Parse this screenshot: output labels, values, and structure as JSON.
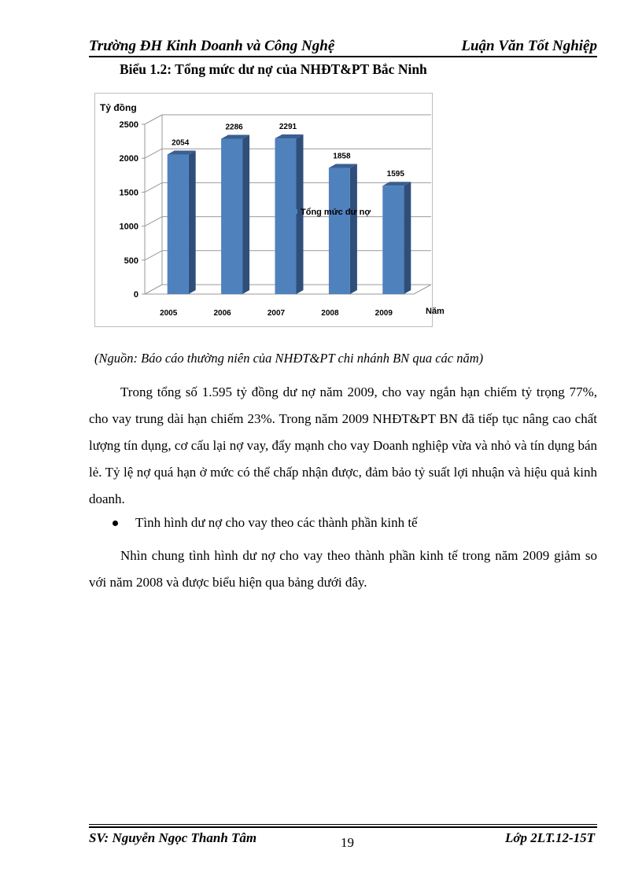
{
  "header": {
    "left": "Trường ĐH Kinh Doanh và Công Nghệ",
    "right": "Luận Văn Tốt Nghiệp"
  },
  "figure_title": "Biểu 1.2: Tổng mức dư nợ của NHĐT&PT Bắc Ninh",
  "chart_data": {
    "type": "bar",
    "title": "",
    "ylabel": "Tỷ đồng",
    "xlabel": "Năm",
    "categories": [
      "2005",
      "2006",
      "2007",
      "2008",
      "2009"
    ],
    "series": [
      {
        "name": "Tổng mức dư nợ",
        "values": [
          2054,
          2286,
          2291,
          1858,
          1595
        ],
        "color": "#4f81bd"
      }
    ],
    "data_labels": [
      "2054",
      "2286",
      "2291",
      "1858",
      "1595"
    ],
    "ylim": [
      0,
      2500
    ],
    "yticks": [
      "0",
      "500",
      "1000",
      "1500",
      "2000",
      "2500"
    ],
    "grid": true,
    "legend": "right",
    "style": "3d"
  },
  "source": "(Nguồn: Báo cáo thường niên của NHĐT&PT chi nhánh BN qua các năm)",
  "paragraph1": "Trong tổng số 1.595 tỷ đồng dư nợ năm 2009, cho vay ngắn hạn chiếm tỷ trọng 77%, cho vay trung dài hạn chiếm 23%. Trong năm 2009 NHĐT&PT BN đã tiếp tục nâng cao chất lượng tín dụng, cơ cấu lại nợ vay, đẩy mạnh cho vay Doanh nghiệp vừa và nhỏ và tín dụng bán lẻ. Tỷ lệ nợ quá hạn ở mức có thể chấp nhận được, đảm bảo tỷ suất lợi nhuận và hiệu quả kinh doanh.",
  "bullet": "Tình hình dư nợ cho vay theo các thành phần kinh tế",
  "paragraph2": "Nhìn chung tình hình dư nợ cho vay theo thành phần kinh tế trong năm 2009 giảm so với năm 2008 và được biểu hiện qua bảng dưới đây.",
  "footer": {
    "left": "SV: Nguyễn Ngọc Thanh Tâm",
    "page": "19",
    "right": "Lớp 2LT.12-15T"
  }
}
